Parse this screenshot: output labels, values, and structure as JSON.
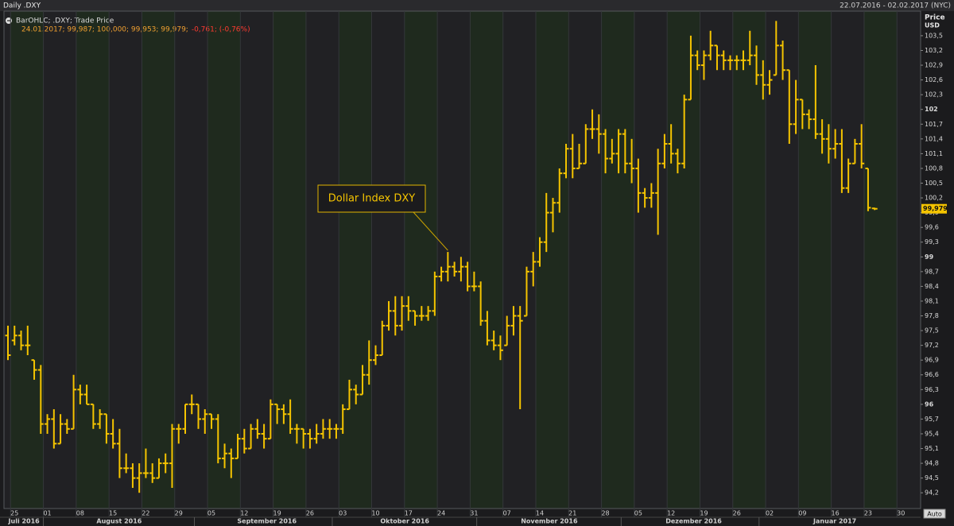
{
  "header": {
    "title": "Daily .DXY",
    "range": "22.07.2016 - 02.02.2017 (NYC)"
  },
  "legend": {
    "title": "BarOHLC; .DXY; Trade Price",
    "values": "24.01.2017; 99,987; 100,000; 99,953; 99,979;",
    "change": "-0,761; (-0,76%)"
  },
  "auto_button": "Auto",
  "chart_data": {
    "type": "ohlc",
    "color": "#f5c400",
    "axis_title": "Price",
    "axis_unit": "USD",
    "annotation": {
      "text": "Dollar Index DXY",
      "x": "2016-10-25"
    },
    "last_price": {
      "value": 99.979,
      "label": "99,979"
    },
    "x": [
      "2016-07-22",
      "2016-07-25",
      "2016-07-26",
      "2016-07-27",
      "2016-07-28",
      "2016-07-29",
      "2016-08-01",
      "2016-08-02",
      "2016-08-03",
      "2016-08-04",
      "2016-08-05",
      "2016-08-08",
      "2016-08-09",
      "2016-08-10",
      "2016-08-11",
      "2016-08-12",
      "2016-08-15",
      "2016-08-16",
      "2016-08-17",
      "2016-08-18",
      "2016-08-19",
      "2016-08-22",
      "2016-08-23",
      "2016-08-24",
      "2016-08-25",
      "2016-08-26",
      "2016-08-29",
      "2016-08-30",
      "2016-08-31",
      "2016-09-01",
      "2016-09-02",
      "2016-09-05",
      "2016-09-06",
      "2016-09-07",
      "2016-09-08",
      "2016-09-09",
      "2016-09-12",
      "2016-09-13",
      "2016-09-14",
      "2016-09-15",
      "2016-09-16",
      "2016-09-19",
      "2016-09-20",
      "2016-09-21",
      "2016-09-22",
      "2016-09-23",
      "2016-09-26",
      "2016-09-27",
      "2016-09-28",
      "2016-09-29",
      "2016-09-30",
      "2016-10-03",
      "2016-10-04",
      "2016-10-05",
      "2016-10-06",
      "2016-10-07",
      "2016-10-10",
      "2016-10-11",
      "2016-10-12",
      "2016-10-13",
      "2016-10-14",
      "2016-10-17",
      "2016-10-18",
      "2016-10-19",
      "2016-10-20",
      "2016-10-21",
      "2016-10-24",
      "2016-10-25",
      "2016-10-26",
      "2016-10-27",
      "2016-10-28",
      "2016-10-31",
      "2016-11-01",
      "2016-11-02",
      "2016-11-03",
      "2016-11-04",
      "2016-11-07",
      "2016-11-08",
      "2016-11-09",
      "2016-11-10",
      "2016-11-11",
      "2016-11-14",
      "2016-11-15",
      "2016-11-16",
      "2016-11-17",
      "2016-11-18",
      "2016-11-21",
      "2016-11-22",
      "2016-11-23",
      "2016-11-24",
      "2016-11-25",
      "2016-11-28",
      "2016-11-29",
      "2016-11-30",
      "2016-12-01",
      "2016-12-02",
      "2016-12-05",
      "2016-12-06",
      "2016-12-07",
      "2016-12-08",
      "2016-12-09",
      "2016-12-12",
      "2016-12-13",
      "2016-12-14",
      "2016-12-15",
      "2016-12-16",
      "2016-12-19",
      "2016-12-20",
      "2016-12-21",
      "2016-12-22",
      "2016-12-23",
      "2016-12-26",
      "2016-12-27",
      "2016-12-28",
      "2016-12-29",
      "2016-12-30",
      "2017-01-02",
      "2017-01-03",
      "2017-01-04",
      "2017-01-05",
      "2017-01-06",
      "2017-01-09",
      "2017-01-10",
      "2017-01-11",
      "2017-01-12",
      "2017-01-13",
      "2017-01-16",
      "2017-01-17",
      "2017-01-18",
      "2017-01-19",
      "2017-01-20",
      "2017-01-23",
      "2017-01-24"
    ],
    "open": [
      97.4,
      97.3,
      97.4,
      97.2,
      96.9,
      96.7,
      95.6,
      95.7,
      95.2,
      95.6,
      95.5,
      96.3,
      96.2,
      96.0,
      95.6,
      95.8,
      95.4,
      95.2,
      94.7,
      94.7,
      94.5,
      94.6,
      94.6,
      94.5,
      94.8,
      94.8,
      95.5,
      95.5,
      96.0,
      96.0,
      95.7,
      95.8,
      95.7,
      94.9,
      95.0,
      94.9,
      95.3,
      95.1,
      95.5,
      95.4,
      95.3,
      96.0,
      95.9,
      95.8,
      95.5,
      95.5,
      95.4,
      95.3,
      95.4,
      95.5,
      95.5,
      95.5,
      95.9,
      96.3,
      96.2,
      96.6,
      96.9,
      97.0,
      97.6,
      97.9,
      97.6,
      98.0,
      97.9,
      97.8,
      97.8,
      97.9,
      98.6,
      98.7,
      98.8,
      98.7,
      98.8,
      98.4,
      98.4,
      97.7,
      97.3,
      97.2,
      97.2,
      97.6,
      97.8,
      97.8,
      98.7,
      98.9,
      99.3,
      99.9,
      100.1,
      100.7,
      101.2,
      100.8,
      100.9,
      101.6,
      101.6,
      101.5,
      101.0,
      101.1,
      101.5,
      100.9,
      100.8,
      100.3,
      100.2,
      100.3,
      100.9,
      101.3,
      101.1,
      100.9,
      102.2,
      103.1,
      102.9,
      103.1,
      103.3,
      103.1,
      103.0,
      103.0,
      103.0,
      103.0,
      103.1,
      102.7,
      102.5,
      102.7,
      103.3,
      102.8,
      101.7,
      102.2,
      101.9,
      101.8,
      101.5,
      101.4,
      101.2,
      101.3,
      100.4,
      100.9,
      101.3,
      100.8,
      99.987
    ],
    "high": [
      97.6,
      97.6,
      97.5,
      97.6,
      96.9,
      96.8,
      95.8,
      95.9,
      95.8,
      95.7,
      96.6,
      96.4,
      96.4,
      96.0,
      95.9,
      95.8,
      95.7,
      95.5,
      95.0,
      94.8,
      94.8,
      95.1,
      94.8,
      94.9,
      95.0,
      95.6,
      95.6,
      96.0,
      96.2,
      96.0,
      95.9,
      95.8,
      95.8,
      95.2,
      95.1,
      95.4,
      95.5,
      95.6,
      95.7,
      95.6,
      96.1,
      96.0,
      96.0,
      96.1,
      95.6,
      95.5,
      95.5,
      95.6,
      95.7,
      95.7,
      95.6,
      96.0,
      96.5,
      96.4,
      96.8,
      97.3,
      97.2,
      97.7,
      98.1,
      98.2,
      98.2,
      98.2,
      97.9,
      98.0,
      98.0,
      98.7,
      98.8,
      99.1,
      98.9,
      99.0,
      98.9,
      98.7,
      98.5,
      97.9,
      97.5,
      97.4,
      97.8,
      98.0,
      98.0,
      98.8,
      99.1,
      99.4,
      100.3,
      100.2,
      100.8,
      101.3,
      101.5,
      101.3,
      101.7,
      102.0,
      101.9,
      101.6,
      101.4,
      101.6,
      101.6,
      101.4,
      101.0,
      100.4,
      100.5,
      101.2,
      101.5,
      101.7,
      101.2,
      102.3,
      103.5,
      103.2,
      103.2,
      103.6,
      103.3,
      103.2,
      103.1,
      103.1,
      103.2,
      103.6,
      103.3,
      103.0,
      102.8,
      103.8,
      103.4,
      102.8,
      102.6,
      102.2,
      102.0,
      102.9,
      101.8,
      101.7,
      101.6,
      101.6,
      101.0,
      101.4,
      101.7,
      100.8,
      100.0
    ],
    "low": [
      96.9,
      97.2,
      97.1,
      97.0,
      96.5,
      95.4,
      95.4,
      95.1,
      95.2,
      95.4,
      95.5,
      96.0,
      96.0,
      95.5,
      95.5,
      95.2,
      95.1,
      94.5,
      94.6,
      94.3,
      94.2,
      94.5,
      94.4,
      94.5,
      94.6,
      94.3,
      95.2,
      95.4,
      95.8,
      95.5,
      95.4,
      95.5,
      94.8,
      94.7,
      94.5,
      94.9,
      95.0,
      95.1,
      95.3,
      95.1,
      95.3,
      95.6,
      95.6,
      95.4,
      95.2,
      95.1,
      95.1,
      95.2,
      95.3,
      95.3,
      95.3,
      95.4,
      95.9,
      96.0,
      96.2,
      96.4,
      96.8,
      97.0,
      97.5,
      97.4,
      97.5,
      97.7,
      97.6,
      97.7,
      97.7,
      97.8,
      98.5,
      98.5,
      98.6,
      98.5,
      98.3,
      98.3,
      97.6,
      97.2,
      97.1,
      96.9,
      97.2,
      97.4,
      95.9,
      97.8,
      98.4,
      98.8,
      99.1,
      99.5,
      99.9,
      100.6,
      100.6,
      100.8,
      100.9,
      101.4,
      101.1,
      100.7,
      100.9,
      100.7,
      100.7,
      100.5,
      99.9,
      100.0,
      100.0,
      99.45,
      100.8,
      100.9,
      100.7,
      100.8,
      102.2,
      102.8,
      102.6,
      103.0,
      102.8,
      102.8,
      102.8,
      102.8,
      102.8,
      102.9,
      102.5,
      102.2,
      102.3,
      102.7,
      102.6,
      101.3,
      101.5,
      101.6,
      101.6,
      101.4,
      101.1,
      100.9,
      101.0,
      100.3,
      100.3,
      100.9,
      100.8,
      99.93,
      99.953
    ],
    "close": [
      97.0,
      97.4,
      97.2,
      97.2,
      96.7,
      95.6,
      95.7,
      95.2,
      95.6,
      95.5,
      96.3,
      96.2,
      96.0,
      95.6,
      95.8,
      95.4,
      95.2,
      94.7,
      94.7,
      94.5,
      94.6,
      94.6,
      94.5,
      94.8,
      94.8,
      95.5,
      95.5,
      96.0,
      96.0,
      95.7,
      95.8,
      95.7,
      94.9,
      95.0,
      94.9,
      95.3,
      95.1,
      95.5,
      95.4,
      95.3,
      96.0,
      95.9,
      95.8,
      95.5,
      95.5,
      95.4,
      95.3,
      95.4,
      95.5,
      95.5,
      95.5,
      95.9,
      96.3,
      96.2,
      96.6,
      96.9,
      97.0,
      97.6,
      97.9,
      97.6,
      98.0,
      97.9,
      97.8,
      97.8,
      97.9,
      98.6,
      98.7,
      98.8,
      98.7,
      98.8,
      98.4,
      98.4,
      97.7,
      97.3,
      97.2,
      97.1,
      97.6,
      97.8,
      97.7,
      98.7,
      98.9,
      99.3,
      99.9,
      100.1,
      100.7,
      101.2,
      100.8,
      100.9,
      101.6,
      101.6,
      101.5,
      101.0,
      101.1,
      101.5,
      100.9,
      100.8,
      100.3,
      100.2,
      100.3,
      100.9,
      101.3,
      101.1,
      100.9,
      102.2,
      103.1,
      102.9,
      103.1,
      103.3,
      103.1,
      103.0,
      103.0,
      103.0,
      103.0,
      103.1,
      102.7,
      102.5,
      102.6,
      103.3,
      102.8,
      101.7,
      102.2,
      101.9,
      101.8,
      101.5,
      101.4,
      101.2,
      101.3,
      100.4,
      100.9,
      101.3,
      100.9,
      100.0,
      99.979
    ],
    "xlim": [
      "2016-07-22",
      "2017-02-02"
    ],
    "xticks": [
      {
        "value": "2016-07-25",
        "label": "25"
      },
      {
        "value": "2016-08-01",
        "label": "01"
      },
      {
        "value": "2016-08-08",
        "label": "08"
      },
      {
        "value": "2016-08-15",
        "label": "15"
      },
      {
        "value": "2016-08-22",
        "label": "22"
      },
      {
        "value": "2016-08-29",
        "label": "29"
      },
      {
        "value": "2016-09-05",
        "label": "05"
      },
      {
        "value": "2016-09-12",
        "label": "12"
      },
      {
        "value": "2016-09-19",
        "label": "19"
      },
      {
        "value": "2016-09-26",
        "label": "26"
      },
      {
        "value": "2016-10-03",
        "label": "03"
      },
      {
        "value": "2016-10-10",
        "label": "10"
      },
      {
        "value": "2016-10-17",
        "label": "17"
      },
      {
        "value": "2016-10-24",
        "label": "24"
      },
      {
        "value": "2016-10-31",
        "label": "31"
      },
      {
        "value": "2016-11-07",
        "label": "07"
      },
      {
        "value": "2016-11-14",
        "label": "14"
      },
      {
        "value": "2016-11-21",
        "label": "21"
      },
      {
        "value": "2016-11-28",
        "label": "28"
      },
      {
        "value": "2016-12-05",
        "label": "05"
      },
      {
        "value": "2016-12-12",
        "label": "12"
      },
      {
        "value": "2016-12-19",
        "label": "19"
      },
      {
        "value": "2016-12-26",
        "label": "26"
      },
      {
        "value": "2017-01-02",
        "label": "02"
      },
      {
        "value": "2017-01-09",
        "label": "09"
      },
      {
        "value": "2017-01-16",
        "label": "16"
      },
      {
        "value": "2017-01-23",
        "label": "23"
      },
      {
        "value": "2017-01-30",
        "label": "30"
      }
    ],
    "months": [
      {
        "value": "2016-07",
        "label": "Juli 2016"
      },
      {
        "value": "2016-08",
        "label": "August 2016"
      },
      {
        "value": "2016-09",
        "label": "September 2016"
      },
      {
        "value": "2016-10",
        "label": "Oktober 2016"
      },
      {
        "value": "2016-11",
        "label": "November 2016"
      },
      {
        "value": "2016-12",
        "label": "Dezember 2016"
      },
      {
        "value": "2017-01",
        "label": "Januar 2017"
      }
    ],
    "ylim": [
      93.88,
      104.0
    ],
    "yticks": [
      {
        "value": 94.2,
        "label": "94,2"
      },
      {
        "value": 94.5,
        "label": "94,5"
      },
      {
        "value": 94.8,
        "label": "94,8"
      },
      {
        "value": 95.1,
        "label": "95,1"
      },
      {
        "value": 95.4,
        "label": "95,4"
      },
      {
        "value": 95.7,
        "label": "95,7"
      },
      96,
      {
        "value": 96.3,
        "label": "96,3"
      },
      {
        "value": 96.6,
        "label": "96,6"
      },
      {
        "value": 96.9,
        "label": "96,9"
      },
      {
        "value": 97.2,
        "label": "97,2"
      },
      {
        "value": 97.5,
        "label": "97,5"
      },
      {
        "value": 97.8,
        "label": "97,8"
      },
      {
        "value": 98.1,
        "label": "98,1"
      },
      {
        "value": 98.4,
        "label": "98,4"
      },
      {
        "value": 98.7,
        "label": "98,7"
      },
      99,
      {
        "value": 99.3,
        "label": "99,3"
      },
      {
        "value": 99.6,
        "label": "99,6"
      },
      {
        "value": 99.9,
        "label": "99,9"
      },
      {
        "value": 100.2,
        "label": "100,2"
      },
      {
        "value": 100.5,
        "label": "100,5"
      },
      {
        "value": 100.8,
        "label": "100,8"
      },
      {
        "value": 101.1,
        "label": "101,1"
      },
      {
        "value": 101.4,
        "label": "101,4"
      },
      {
        "value": 101.7,
        "label": "101,7"
      },
      102,
      {
        "value": 102.3,
        "label": "102,3"
      },
      {
        "value": 102.6,
        "label": "102,6"
      },
      {
        "value": 102.9,
        "label": "102,9"
      },
      {
        "value": 103.2,
        "label": "103,2"
      },
      {
        "value": 103.5,
        "label": "103,5"
      }
    ]
  }
}
